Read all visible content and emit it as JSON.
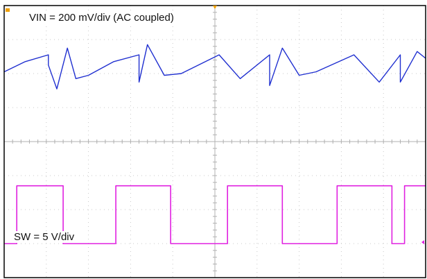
{
  "chart_data": {
    "type": "line",
    "title": "",
    "grid": true,
    "divisions": {
      "x": 10,
      "y": 8
    },
    "annotations": [
      "VIN = 200 mV/div (AC coupled)",
      "SW = 5 V/div"
    ],
    "series": [
      {
        "label": "VIN = 200 mV/div (AC coupled)",
        "color": "#1f2fd0",
        "coupling": "AC",
        "volts_per_div": 0.2,
        "waveform": "sawtooth ripple with ringing at each SW transition",
        "x_div": [
          0,
          0.5,
          1.05,
          1.05,
          1.25,
          1.5,
          1.7,
          2.0,
          2.6,
          3.2,
          3.2,
          3.4,
          3.8,
          4.2,
          5.1,
          5.6,
          6.3,
          6.3,
          6.6,
          7.0,
          7.4,
          8.3,
          8.9,
          9.4,
          9.4,
          9.8,
          10
        ],
        "y_div": [
          -0.2,
          0.1,
          0.3,
          0.0,
          -0.7,
          0.5,
          -0.4,
          -0.3,
          0.1,
          0.3,
          -0.5,
          0.6,
          -0.3,
          -0.25,
          0.3,
          -0.4,
          0.3,
          -0.6,
          0.5,
          -0.3,
          -0.2,
          0.3,
          -0.5,
          0.3,
          -0.5,
          0.4,
          0.2
        ]
      },
      {
        "label": "SW = 5 V/div",
        "color": "#e020e0",
        "volts_per_div": 5,
        "waveform": "square pulses",
        "high_v": 8.5,
        "low_v": 0,
        "pulse_start_div": [
          0.3,
          2.65,
          5.3,
          7.9,
          9.5
        ],
        "pulse_end_div": [
          1.4,
          3.95,
          6.6,
          9.2,
          10
        ],
        "x_div": [
          0,
          0.3,
          0.3,
          1.4,
          1.4,
          2.65,
          2.65,
          3.95,
          3.95,
          5.3,
          5.3,
          6.6,
          6.6,
          7.9,
          7.9,
          9.2,
          9.2,
          9.5,
          9.5,
          10
        ],
        "y_v": [
          0,
          0,
          8.5,
          8.5,
          0,
          0,
          8.5,
          8.5,
          0,
          0,
          8.5,
          8.5,
          0,
          0,
          8.5,
          8.5,
          0,
          0,
          8.5,
          8.5
        ]
      }
    ]
  }
}
